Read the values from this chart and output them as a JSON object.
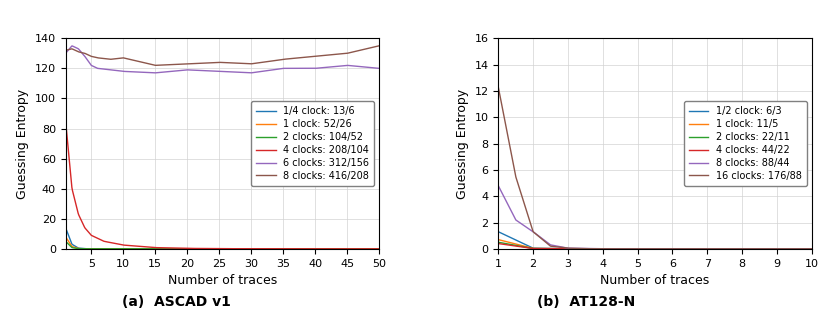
{
  "left": {
    "title": "(a)  ASCAD v1",
    "xlabel": "Number of traces",
    "ylabel": "Guessing Entropy",
    "xlim": [
      1,
      50
    ],
    "ylim": [
      0,
      140
    ],
    "yticks": [
      0,
      20,
      40,
      60,
      80,
      100,
      120,
      140
    ],
    "xticks": [
      5,
      10,
      15,
      20,
      25,
      30,
      35,
      40,
      45,
      50
    ],
    "series": [
      {
        "label": "1/4 clock: 13/6",
        "color": "#1f77b4",
        "x_pts": [
          1,
          2,
          3,
          4,
          5,
          10,
          20,
          30,
          40,
          50
        ],
        "y_pts": [
          14,
          3,
          0.5,
          0.1,
          0.0,
          0.0,
          0.0,
          0.0,
          0.0,
          0.0
        ]
      },
      {
        "label": "1 clock: 52/26",
        "color": "#ff7f0e",
        "x_pts": [
          1,
          2,
          3,
          4,
          5,
          10,
          20,
          30,
          40,
          50
        ],
        "y_pts": [
          8,
          1.5,
          0.2,
          0.0,
          0.0,
          0.0,
          0.0,
          0.0,
          0.0,
          0.0
        ]
      },
      {
        "label": "2 clocks: 104/52",
        "color": "#2ca02c",
        "x_pts": [
          1,
          2,
          3,
          4,
          5,
          10,
          20,
          30,
          40,
          50
        ],
        "y_pts": [
          5,
          0.8,
          0.1,
          0.0,
          0.0,
          0.0,
          0.0,
          0.0,
          0.0,
          0.0
        ]
      },
      {
        "label": "4 clocks: 208/104",
        "color": "#d62728",
        "x_pts": [
          1,
          2,
          3,
          4,
          5,
          7,
          10,
          15,
          20,
          25,
          30,
          33,
          40,
          50
        ],
        "y_pts": [
          85,
          40,
          23,
          14,
          9,
          5,
          2.5,
          0.8,
          0.3,
          0.1,
          0.05,
          0.0,
          0.0,
          0.0
        ]
      },
      {
        "label": "6 clocks: 312/156",
        "color": "#9467bd",
        "x_pts": [
          1,
          2,
          3,
          4,
          5,
          6,
          8,
          10,
          15,
          20,
          25,
          30,
          35,
          40,
          45,
          50
        ],
        "y_pts": [
          130,
          135,
          133,
          128,
          122,
          120,
          119,
          118,
          117,
          119,
          118,
          117,
          120,
          120,
          122,
          120
        ]
      },
      {
        "label": "8 clocks: 416/208",
        "color": "#8c564b",
        "x_pts": [
          1,
          2,
          3,
          4,
          5,
          6,
          8,
          10,
          15,
          20,
          25,
          30,
          35,
          40,
          45,
          50
        ],
        "y_pts": [
          132,
          133,
          131,
          130,
          128,
          127,
          126,
          127,
          122,
          123,
          124,
          123,
          126,
          128,
          130,
          135
        ]
      }
    ]
  },
  "right": {
    "title": "(b)  AT128-N",
    "xlabel": "Number of traces",
    "ylabel": "Guessing Entropy",
    "xlim": [
      1,
      10
    ],
    "ylim": [
      0,
      16
    ],
    "yticks": [
      0,
      2,
      4,
      6,
      8,
      10,
      12,
      14,
      16
    ],
    "xticks": [
      1,
      2,
      3,
      4,
      5,
      6,
      7,
      8,
      9,
      10
    ],
    "series": [
      {
        "label": "1/2 clock: 6/3",
        "color": "#1f77b4",
        "x_pts": [
          1,
          2,
          3,
          4,
          5,
          6,
          7,
          8,
          9,
          10
        ],
        "y_pts": [
          1.3,
          0.05,
          0.0,
          0.0,
          0.0,
          0.0,
          0.0,
          0.0,
          0.0,
          0.0
        ]
      },
      {
        "label": "1 clock: 11/5",
        "color": "#ff7f0e",
        "x_pts": [
          1,
          2,
          3,
          4,
          5,
          6,
          7,
          8,
          9,
          10
        ],
        "y_pts": [
          0.7,
          0.03,
          0.0,
          0.0,
          0.0,
          0.0,
          0.0,
          0.0,
          0.0,
          0.0
        ]
      },
      {
        "label": "2 clocks: 22/11",
        "color": "#2ca02c",
        "x_pts": [
          1,
          2,
          3,
          4,
          5,
          6,
          7,
          8,
          9,
          10
        ],
        "y_pts": [
          0.5,
          0.02,
          0.0,
          0.0,
          0.0,
          0.0,
          0.0,
          0.0,
          0.0,
          0.0
        ]
      },
      {
        "label": "4 clocks: 44/22",
        "color": "#d62728",
        "x_pts": [
          1,
          2,
          3,
          4,
          5,
          6,
          7,
          8,
          9,
          10
        ],
        "y_pts": [
          0.4,
          0.02,
          0.0,
          0.0,
          0.0,
          0.0,
          0.0,
          0.0,
          0.0,
          0.0
        ]
      },
      {
        "label": "8 clocks: 88/44",
        "color": "#9467bd",
        "x_pts": [
          1,
          1.5,
          2,
          2.5,
          3,
          4,
          5,
          6,
          7,
          8,
          9,
          10
        ],
        "y_pts": [
          4.8,
          2.2,
          1.3,
          0.3,
          0.05,
          0.0,
          0.0,
          0.0,
          0.0,
          0.0,
          0.0,
          0.0
        ]
      },
      {
        "label": "16 clocks: 176/88",
        "color": "#8c564b",
        "x_pts": [
          1,
          1.5,
          2,
          2.5,
          3,
          3.5,
          4,
          5,
          6,
          7,
          8,
          9,
          10
        ],
        "y_pts": [
          12.3,
          5.5,
          1.3,
          0.2,
          0.05,
          0.01,
          0.0,
          0.0,
          0.0,
          0.0,
          0.0,
          0.0,
          0.0
        ]
      }
    ]
  }
}
